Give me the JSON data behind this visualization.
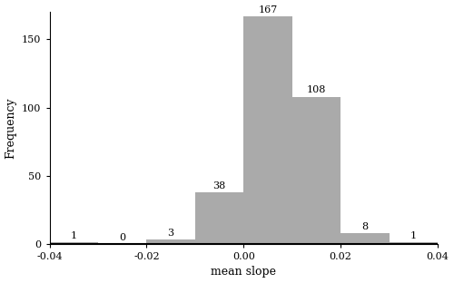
{
  "bin_edges": [
    -0.04,
    -0.03,
    -0.02,
    -0.01,
    0.0,
    0.01,
    0.02,
    0.03,
    0.04
  ],
  "frequencies": [
    1,
    0,
    3,
    38,
    167,
    108,
    8,
    1
  ],
  "bar_color": "#aaaaaa",
  "xlabel": "mean slope",
  "ylabel": "Frequency",
  "xlim": [
    -0.04,
    0.04
  ],
  "ylim": [
    0,
    170
  ],
  "yticks": [
    0,
    50,
    100,
    150
  ],
  "xticks": [
    -0.04,
    -0.02,
    0.0,
    0.02,
    0.04
  ],
  "label_fontsize": 9,
  "tick_fontsize": 8,
  "bar_label_fontsize": 8,
  "figsize": [
    5.0,
    3.12
  ],
  "dpi": 100
}
